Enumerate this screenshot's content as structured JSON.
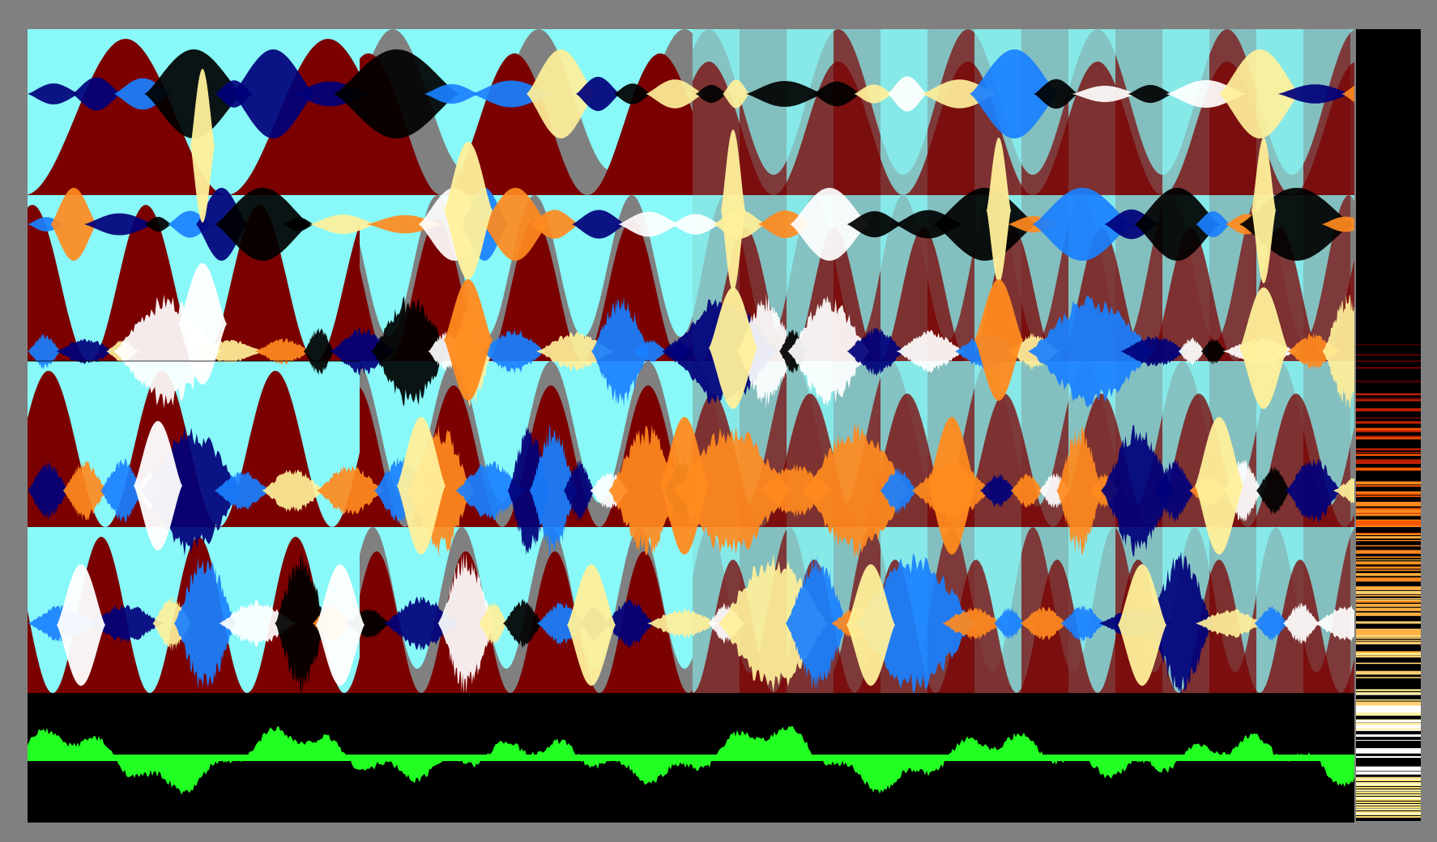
{
  "colors": {
    "background": "#808080",
    "cyan": "#88f8f8",
    "dark_red": "#7b0000",
    "black": "#000000",
    "navy": "#00007a",
    "blue": "#1a80ff",
    "orange": "#ff8a1e",
    "light_yellow": "#fff09a",
    "white": "#ffffff",
    "green": "#22ff22"
  },
  "bands": [
    {
      "id": "band-1"
    },
    {
      "id": "band-2"
    },
    {
      "id": "band-3"
    },
    {
      "id": "band-4"
    }
  ],
  "waveform_panel": {
    "id": "waveform"
  },
  "colorbar": {
    "id": "colorbar"
  }
}
